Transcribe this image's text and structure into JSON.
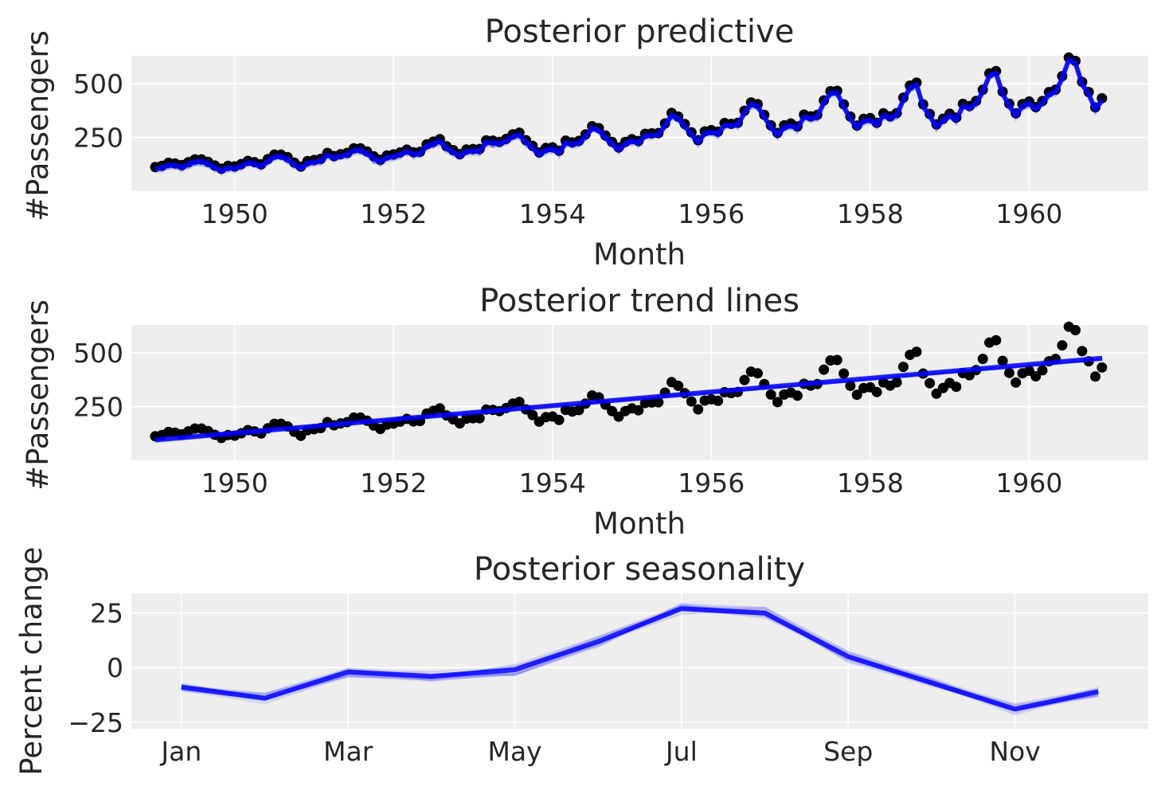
{
  "chart_data": [
    {
      "type": "line",
      "title": "Posterior predictive",
      "xlabel": "Month",
      "ylabel": "#Passengers",
      "xlim": [
        1948.7,
        1961.5
      ],
      "ylim": [
        0,
        630
      ],
      "xticks": [
        1950,
        1952,
        1954,
        1956,
        1958,
        1960
      ],
      "xtick_labels": [
        "1950",
        "1952",
        "1954",
        "1956",
        "1958",
        "1960"
      ],
      "yticks": [
        250,
        500
      ],
      "ytick_labels": [
        "250",
        "500"
      ],
      "grid": true,
      "series": [
        {
          "kind": "scatter",
          "color": "#000000",
          "source": "passengers"
        },
        {
          "kind": "line-band",
          "color": "#0000ff",
          "source": "passengers_fit"
        }
      ]
    },
    {
      "type": "line",
      "title": "Posterior trend lines",
      "xlabel": "Month",
      "ylabel": "#Passengers",
      "xlim": [
        1948.7,
        1961.5
      ],
      "ylim": [
        0,
        630
      ],
      "xticks": [
        1950,
        1952,
        1954,
        1956,
        1958,
        1960
      ],
      "xtick_labels": [
        "1950",
        "1952",
        "1954",
        "1956",
        "1958",
        "1960"
      ],
      "yticks": [
        250,
        500
      ],
      "ytick_labels": [
        "250",
        "500"
      ],
      "grid": true,
      "trend": {
        "start": [
          1949.0,
          95
        ],
        "end": [
          1960.92,
          475
        ]
      },
      "series": [
        {
          "kind": "scatter",
          "color": "#000000",
          "source": "passengers"
        },
        {
          "kind": "line-band",
          "color": "#0000ff",
          "source": "trend"
        }
      ]
    },
    {
      "type": "line",
      "title": "Posterior seasonality",
      "xlabel": "",
      "ylabel": "Percent change",
      "xlim": [
        -0.6,
        11.6
      ],
      "ylim": [
        -28,
        34
      ],
      "xticks": [
        0,
        2,
        4,
        6,
        8,
        10
      ],
      "xtick_labels": [
        "Jan",
        "Mar",
        "May",
        "Jul",
        "Sep",
        "Nov"
      ],
      "yticks": [
        -25,
        0,
        25
      ],
      "ytick_labels": [
        "−25",
        "0",
        "25"
      ],
      "grid": true,
      "x": [
        0,
        1,
        2,
        3,
        4,
        5,
        6,
        7,
        8,
        9,
        10,
        11
      ],
      "values": [
        -9,
        -14,
        -2,
        -4,
        -1,
        12,
        27,
        25,
        5,
        -7,
        -19,
        -11
      ],
      "series": [
        {
          "kind": "line-band",
          "color": "#0000ff",
          "source": "values"
        }
      ]
    }
  ],
  "passengers": {
    "start_year": 1949,
    "values": [
      112,
      118,
      132,
      129,
      121,
      135,
      148,
      148,
      136,
      119,
      104,
      118,
      115,
      126,
      141,
      135,
      125,
      149,
      170,
      170,
      158,
      133,
      114,
      140,
      145,
      150,
      178,
      163,
      172,
      178,
      199,
      199,
      184,
      162,
      146,
      166,
      171,
      180,
      193,
      181,
      183,
      218,
      230,
      242,
      209,
      191,
      172,
      194,
      196,
      196,
      236,
      235,
      229,
      243,
      264,
      272,
      237,
      211,
      180,
      201,
      204,
      188,
      235,
      227,
      234,
      264,
      302,
      293,
      259,
      229,
      203,
      229,
      242,
      233,
      267,
      269,
      270,
      315,
      364,
      347,
      312,
      274,
      237,
      278,
      284,
      277,
      317,
      313,
      318,
      374,
      413,
      405,
      355,
      306,
      271,
      306,
      315,
      301,
      356,
      348,
      355,
      422,
      465,
      467,
      404,
      347,
      305,
      336,
      340,
      318,
      362,
      348,
      363,
      435,
      491,
      505,
      404,
      359,
      310,
      337,
      360,
      342,
      406,
      396,
      420,
      472,
      548,
      559,
      463,
      407,
      362,
      405,
      417,
      391,
      419,
      461,
      472,
      535,
      622,
      606,
      508,
      461,
      390,
      432
    ]
  }
}
